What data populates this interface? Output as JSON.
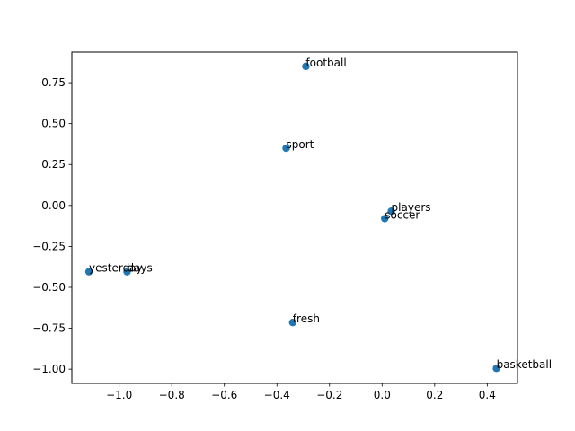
{
  "chart_data": {
    "type": "scatter",
    "title": "",
    "xlabel": "",
    "ylabel": "",
    "xlim": [
      -1.18,
      0.515
    ],
    "ylim": [
      -1.087,
      0.937
    ],
    "grid": false,
    "marker_color": "#1f77b4",
    "x_ticks": [
      {
        "value": -1.0,
        "label": "−1.0"
      },
      {
        "value": -0.8,
        "label": "−0.8"
      },
      {
        "value": -0.6,
        "label": "−0.6"
      },
      {
        "value": -0.4,
        "label": "−0.4"
      },
      {
        "value": -0.2,
        "label": "−0.2"
      },
      {
        "value": 0.0,
        "label": "0.0"
      },
      {
        "value": 0.2,
        "label": "0.2"
      },
      {
        "value": 0.4,
        "label": "0.4"
      }
    ],
    "y_ticks": [
      {
        "value": 0.75,
        "label": "0.75"
      },
      {
        "value": 0.5,
        "label": "0.50"
      },
      {
        "value": 0.25,
        "label": "0.25"
      },
      {
        "value": 0.0,
        "label": "0.00"
      },
      {
        "value": -0.25,
        "label": "−0.25"
      },
      {
        "value": -0.5,
        "label": "−0.50"
      },
      {
        "value": -0.75,
        "label": "−0.75"
      },
      {
        "value": -1.0,
        "label": "−1.00"
      }
    ],
    "points": [
      {
        "label": "football",
        "x": -0.29,
        "y": 0.85
      },
      {
        "label": "sport",
        "x": -0.365,
        "y": 0.35
      },
      {
        "label": "players",
        "x": 0.035,
        "y": -0.035
      },
      {
        "label": "soccer",
        "x": 0.01,
        "y": -0.08
      },
      {
        "label": "yesterday",
        "x": -1.115,
        "y": -0.405
      },
      {
        "label": "days",
        "x": -0.97,
        "y": -0.405
      },
      {
        "label": "fresh",
        "x": -0.34,
        "y": -0.715
      },
      {
        "label": "basketball",
        "x": 0.435,
        "y": -0.995
      }
    ]
  }
}
